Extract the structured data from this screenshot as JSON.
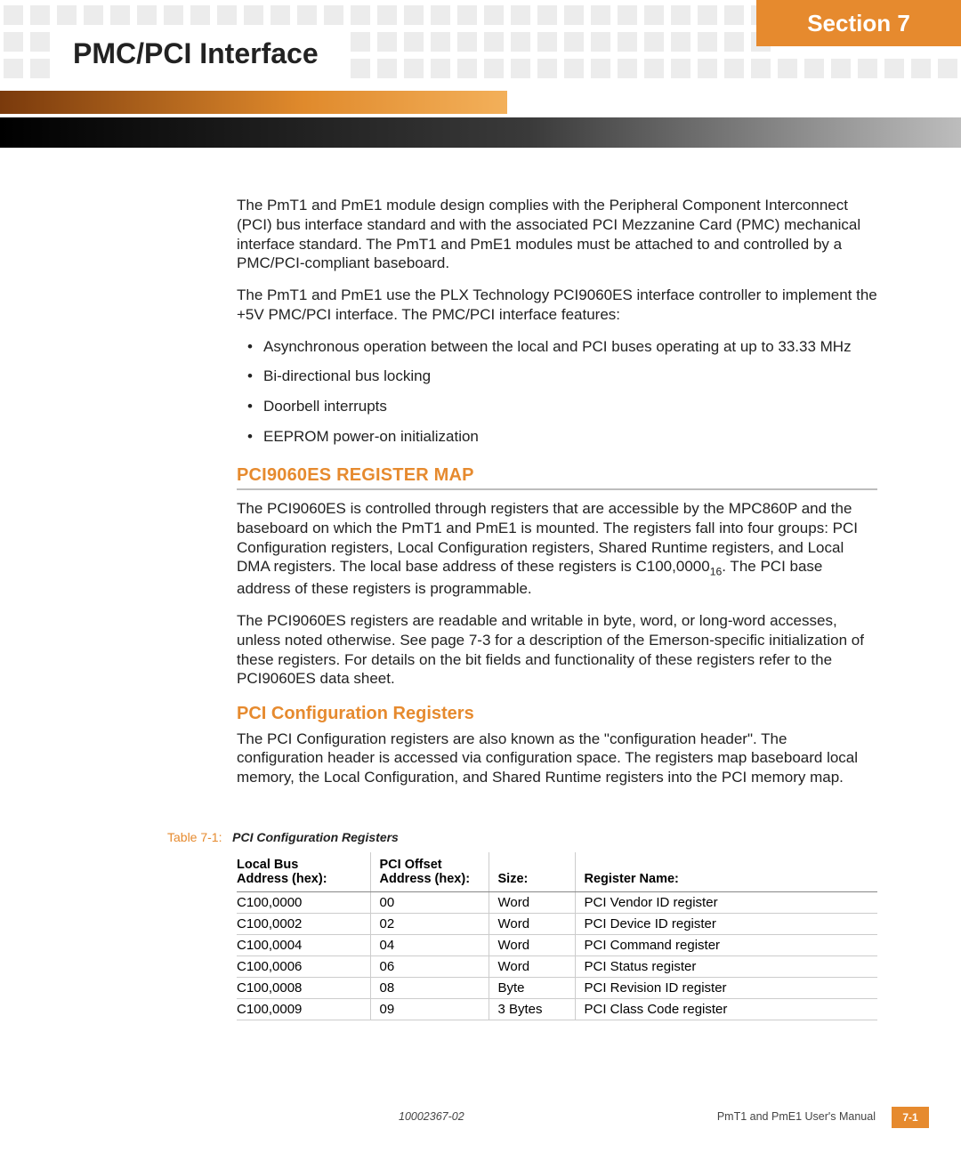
{
  "header": {
    "section_label": "Section 7",
    "title": "PMC/PCI Interface"
  },
  "intro": {
    "p1": "The PmT1 and PmE1 module design complies with the Peripheral Component Interconnect (PCI) bus interface standard and with the associated PCI Mezzanine Card (PMC) mechanical interface standard. The PmT1 and PmE1 modules must be attached to and controlled by a PMC/PCI-compliant baseboard.",
    "p2": "The PmT1 and PmE1 use the PLX Technology PCI9060ES interface controller to implement the +5V PMC/PCI interface. The PMC/PCI interface features:",
    "bullets": [
      "Asynchronous operation between the local and PCI buses operating at up to 33.33 MHz",
      "Bi-directional bus locking",
      "Doorbell interrupts",
      "EEPROM power-on initialization"
    ]
  },
  "regmap": {
    "heading": "PCI9060ES REGISTER MAP",
    "p1_pre": "The PCI9060ES is controlled through registers that are accessible by the MPC860P and the baseboard on which the PmT1 and PmE1 is mounted. The registers fall into four groups:  PCI Configuration registers, Local Configuration registers, Shared Runtime registers, and Local DMA registers. The local base address of these registers is C100,0000",
    "p1_sub": "16",
    "p1_post": ". The PCI base address of these registers is programmable.",
    "p2": "The PCI9060ES registers are readable and writable in byte, word, or long-word accesses, unless noted otherwise. See page 7-3 for a description of the Emerson-specific initialization of these registers. For details on the bit fields and functionality of these registers refer to the PCI9060ES data sheet."
  },
  "pcicfg": {
    "heading": "PCI Configuration Registers",
    "p1": "The PCI Configuration registers are also known as the \"configuration header\". The configuration header is accessed via configuration space. The registers map baseboard local memory, the Local Configuration, and Shared Runtime registers into the PCI memory map."
  },
  "table": {
    "caption_label": "Table 7-1:",
    "caption_title": "PCI Configuration Registers",
    "columns": {
      "c1a": "Local Bus",
      "c1b": "Address (hex):",
      "c2a": "PCI Offset",
      "c2b": "Address (hex):",
      "c3": "Size:",
      "c4": "Register Name:"
    },
    "rows": [
      {
        "local": "C100,0000",
        "offset": "00",
        "size": "Word",
        "name": "PCI Vendor ID register"
      },
      {
        "local": "C100,0002",
        "offset": "02",
        "size": "Word",
        "name": "PCI Device ID register"
      },
      {
        "local": "C100,0004",
        "offset": "04",
        "size": "Word",
        "name": "PCI Command register"
      },
      {
        "local": "C100,0006",
        "offset": "06",
        "size": "Word",
        "name": "PCI Status register"
      },
      {
        "local": "C100,0008",
        "offset": "08",
        "size": "Byte",
        "name": "PCI Revision ID register"
      },
      {
        "local": "C100,0009",
        "offset": "09",
        "size": "3 Bytes",
        "name": "PCI Class Code register"
      }
    ]
  },
  "footer": {
    "doc_id": "10002367-02",
    "manual": "PmT1 and PmE1 User's Manual",
    "page": "7-1"
  },
  "style": {
    "accent": "#e68a2e",
    "square_gray": "#ececec"
  }
}
